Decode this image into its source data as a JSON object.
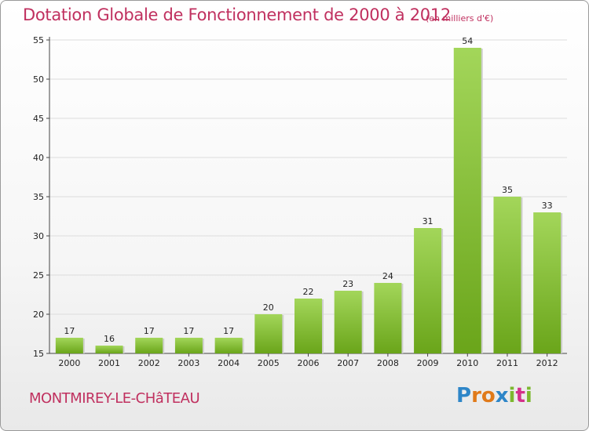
{
  "header": {
    "title": "Dotation Globale de Fonctionnement de 2000 à 2012",
    "subtitle": "(en milliers d'€)"
  },
  "footer": {
    "commune": "MONTMIREY-LE-CHâTEAU",
    "logo_letters": [
      "P",
      "r",
      "o",
      "x",
      "i",
      "t",
      "i"
    ],
    "logo_colors": [
      "#2e86c8",
      "#e07a1a",
      "#e07a1a",
      "#2e86c8",
      "#7cb82f",
      "#d4308a",
      "#7cb82f"
    ]
  },
  "chart_data": {
    "type": "bar",
    "title": "Dotation Globale de Fonctionnement de 2000 à 2012",
    "subtitle": "(en milliers d'€)",
    "categories": [
      "2000",
      "2001",
      "2002",
      "2003",
      "2004",
      "2005",
      "2006",
      "2007",
      "2008",
      "2009",
      "2010",
      "2011",
      "2012"
    ],
    "values": [
      17,
      16,
      17,
      17,
      17,
      20,
      22,
      23,
      24,
      31,
      54,
      35,
      33
    ],
    "ylim": [
      15,
      55
    ],
    "yticks": [
      15,
      20,
      25,
      30,
      35,
      40,
      45,
      50,
      55
    ],
    "grid": true,
    "bar_color_top": "#a3d65a",
    "bar_color_bottom": "#6aa51a"
  }
}
